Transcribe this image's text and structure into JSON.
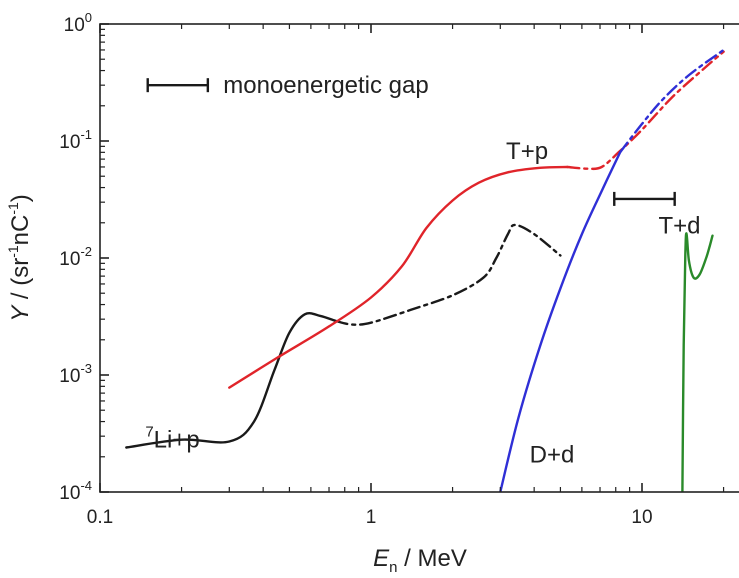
{
  "chart_data": {
    "type": "line",
    "xlabel_main": "E",
    "xlabel_sub": "n",
    "xlabel_rest": " / MeV",
    "ylabel_main": "Y",
    "ylabel_rest": " / (sr",
    "ylabel_exp1": "-1",
    "ylabel_mid": "nC",
    "ylabel_exp2": "-1",
    "ylabel_end": ")",
    "x_scale": "log",
    "y_scale": "log",
    "xlim": [
      0.1,
      20
    ],
    "ylim": [
      0.0001,
      1
    ],
    "x_ticks": [
      {
        "value": 0.1,
        "label": "0.1"
      },
      {
        "value": 1,
        "label": "1"
      },
      {
        "value": 10,
        "label": "10"
      }
    ],
    "y_ticks": [
      {
        "value": 1,
        "base": "10",
        "exp": "0"
      },
      {
        "value": 0.1,
        "base": "10",
        "exp": "-1"
      },
      {
        "value": 0.01,
        "base": "10",
        "exp": "-2"
      },
      {
        "value": 0.001,
        "base": "10",
        "exp": "-3"
      },
      {
        "value": 0.0001,
        "base": "10",
        "exp": "-4"
      }
    ],
    "grid": false,
    "series": [
      {
        "id": "li",
        "color": "#1a1a1a",
        "segments": [
          {
            "style": "solid",
            "points": [
              [
                0.125,
                0.00024
              ],
              [
                0.2,
                0.00028
              ],
              [
                0.3,
                0.00027
              ],
              [
                0.37,
                0.0004
              ],
              [
                0.44,
                0.0011
              ],
              [
                0.5,
                0.0023
              ],
              [
                0.57,
                0.0033
              ],
              [
                0.65,
                0.0032
              ],
              [
                0.74,
                0.0029
              ]
            ]
          },
          {
            "style": "dashdot",
            "points": [
              [
                0.74,
                0.0029
              ],
              [
                0.85,
                0.0027
              ],
              [
                1.0,
                0.0028
              ],
              [
                1.4,
                0.0036
              ],
              [
                2.0,
                0.0048
              ],
              [
                2.6,
                0.0068
              ],
              [
                2.9,
                0.01
              ],
              [
                3.2,
                0.016
              ],
              [
                3.4,
                0.0192
              ],
              [
                4.0,
                0.016
              ],
              [
                5.0,
                0.0105
              ]
            ]
          }
        ]
      },
      {
        "id": "tp",
        "color": "#e0242a",
        "segments": [
          {
            "style": "solid",
            "points": [
              [
                0.3,
                0.00078
              ],
              [
                0.45,
                0.0014
              ],
              [
                0.7,
                0.0026
              ],
              [
                1.0,
                0.0046
              ],
              [
                1.3,
                0.0085
              ],
              [
                1.6,
                0.018
              ],
              [
                2.0,
                0.031
              ],
              [
                2.5,
                0.044
              ],
              [
                3.2,
                0.054
              ],
              [
                4.2,
                0.059
              ],
              [
                5.3,
                0.06
              ]
            ]
          },
          {
            "style": "dashdot",
            "points": [
              [
                5.3,
                0.06
              ],
              [
                6.3,
                0.058
              ],
              [
                7.1,
                0.06
              ],
              [
                8.2,
                0.08
              ],
              [
                10,
                0.125
              ],
              [
                13,
                0.24
              ],
              [
                17,
                0.42
              ],
              [
                20,
                0.58
              ]
            ]
          }
        ]
      },
      {
        "id": "dd",
        "color": "#2f2fd6",
        "segments": [
          {
            "style": "solid",
            "points": [
              [
                3.0,
                0.0001
              ],
              [
                3.5,
                0.00043
              ],
              [
                4.2,
                0.00175
              ],
              [
                5.0,
                0.0055
              ],
              [
                6.0,
                0.016
              ],
              [
                7.2,
                0.04
              ],
              [
                8.3,
                0.08
              ]
            ]
          },
          {
            "style": "dashdot",
            "points": [
              [
                8.3,
                0.08
              ],
              [
                10,
                0.14
              ],
              [
                12,
                0.23
              ],
              [
                15,
                0.37
              ],
              [
                20,
                0.6
              ]
            ]
          }
        ]
      },
      {
        "id": "td",
        "color": "#2a8a2a",
        "segments": [
          {
            "style": "solid",
            "points": [
              [
                14.1,
                0.0001
              ],
              [
                14.25,
                0.0018
              ],
              [
                14.45,
                0.0105
              ],
              [
                14.6,
                0.0162
              ],
              [
                14.9,
                0.0095
              ],
              [
                15.5,
                0.0068
              ],
              [
                16.3,
                0.0072
              ],
              [
                17.2,
                0.0098
              ],
              [
                17.8,
                0.0128
              ],
              [
                18.2,
                0.0155
              ]
            ]
          }
        ]
      }
    ],
    "errorbars": [
      {
        "id": "gap-legend",
        "x1": 0.15,
        "x2": 0.25,
        "y": 0.3
      },
      {
        "id": "gap-td",
        "x1": 7.9,
        "x2": 13.2,
        "y": 0.032
      }
    ],
    "annotations": [
      {
        "id": "legend-monoenergetic-gap",
        "text": "monoenergetic gap",
        "x": 0.285,
        "y": 0.3,
        "anchor": "start"
      },
      {
        "id": "label-tp",
        "text": "T+p",
        "x": 3.15,
        "y": 0.082,
        "anchor": "start"
      },
      {
        "id": "label-td",
        "text": "T+d",
        "x": 11.5,
        "y": 0.019,
        "anchor": "start"
      },
      {
        "id": "label-dd",
        "text": "D+d",
        "x": 3.85,
        "y": 0.00021,
        "anchor": "start"
      },
      {
        "id": "label-li",
        "text": "Li+p",
        "sup": "7",
        "x": 0.147,
        "y": 0.00028,
        "anchor": "start"
      }
    ]
  }
}
